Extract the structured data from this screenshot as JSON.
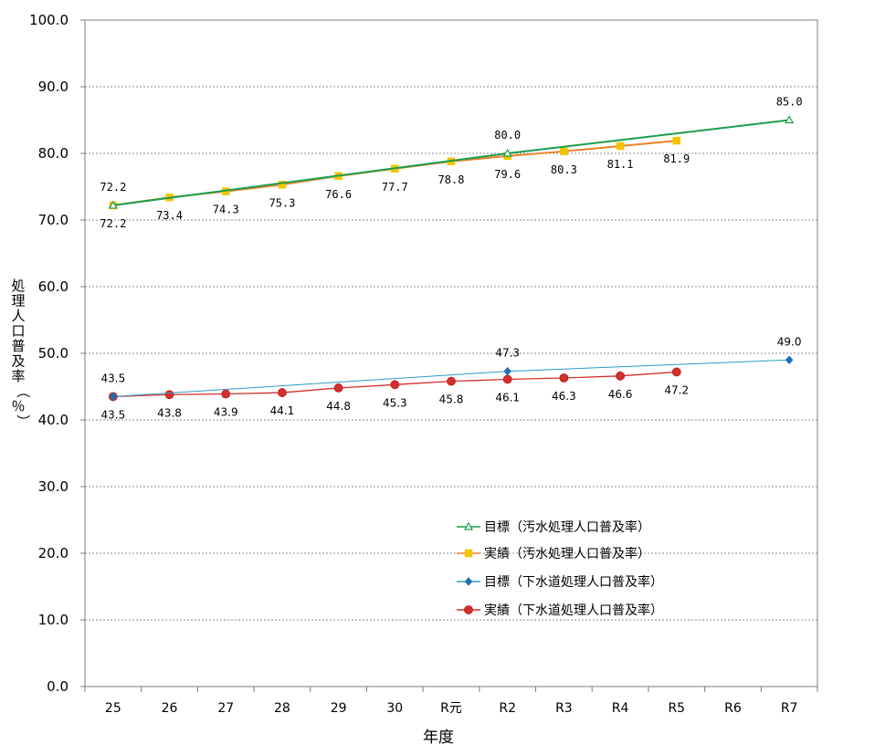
{
  "chart_data": {
    "type": "line",
    "title": "",
    "xlabel": "年度",
    "ylabel": "処理人口普及率（％）",
    "categories": [
      "25",
      "26",
      "27",
      "28",
      "29",
      "30",
      "R元",
      "R2",
      "R3",
      "R4",
      "R5",
      "R6",
      "R7"
    ],
    "ylim": [
      0,
      100
    ],
    "yticks": [
      "0.0",
      "10.0",
      "20.0",
      "30.0",
      "40.0",
      "50.0",
      "60.0",
      "70.0",
      "80.0",
      "90.0",
      "100.0"
    ],
    "grid": "horizontal dashed",
    "legend_position": "center-right inside plot",
    "series": [
      {
        "name": "目標（汚水処理人口普及率）",
        "color": "#1a9e4f",
        "marker": "triangle",
        "points": [
          {
            "x": "25",
            "y": 72.2,
            "label": "72.2"
          },
          {
            "x": "R2",
            "y": 80.0,
            "label": "80.0"
          },
          {
            "x": "R7",
            "y": 85.0,
            "label": "85.0"
          }
        ]
      },
      {
        "name": "実績（汚水処理人口普及率）",
        "color": "#e8832a",
        "marker_color": "#f5c400",
        "marker": "square",
        "points": [
          {
            "x": "25",
            "y": 72.2,
            "label": "72.2"
          },
          {
            "x": "26",
            "y": 73.4,
            "label": "73.4"
          },
          {
            "x": "27",
            "y": 74.3,
            "label": "74.3"
          },
          {
            "x": "28",
            "y": 75.3,
            "label": "75.3"
          },
          {
            "x": "29",
            "y": 76.6,
            "label": "76.6"
          },
          {
            "x": "30",
            "y": 77.7,
            "label": "77.7"
          },
          {
            "x": "R元",
            "y": 78.8,
            "label": "78.8"
          },
          {
            "x": "R2",
            "y": 79.6,
            "label": "79.6"
          },
          {
            "x": "R3",
            "y": 80.3,
            "label": "80.3"
          },
          {
            "x": "R4",
            "y": 81.1,
            "label": "81.1"
          },
          {
            "x": "R5",
            "y": 81.9,
            "label": "81.9"
          }
        ]
      },
      {
        "name": "目標（下水道処理人口普及率）",
        "color": "#2e9bc6",
        "marker_color": "#1f6fb3",
        "marker": "diamond",
        "points": [
          {
            "x": "25",
            "y": 43.5,
            "label": "43.5"
          },
          {
            "x": "R2",
            "y": 47.3,
            "label": "47.3"
          },
          {
            "x": "R7",
            "y": 49.0,
            "label": "49.0"
          }
        ]
      },
      {
        "name": "実績（下水道処理人口普及率）",
        "color": "#d32f2f",
        "marker": "circle",
        "points": [
          {
            "x": "25",
            "y": 43.5,
            "label": "43.5"
          },
          {
            "x": "26",
            "y": 43.8,
            "label": "43.8"
          },
          {
            "x": "27",
            "y": 43.9,
            "label": "43.9"
          },
          {
            "x": "28",
            "y": 44.1,
            "label": "44.1"
          },
          {
            "x": "29",
            "y": 44.8,
            "label": "44.8"
          },
          {
            "x": "30",
            "y": 45.3,
            "label": "45.3"
          },
          {
            "x": "R元",
            "y": 45.8,
            "label": "45.8"
          },
          {
            "x": "R2",
            "y": 46.1,
            "label": "46.1"
          },
          {
            "x": "R3",
            "y": 46.3,
            "label": "46.3"
          },
          {
            "x": "R4",
            "y": 46.6,
            "label": "46.6"
          },
          {
            "x": "R5",
            "y": 47.2,
            "label": "47.2"
          }
        ]
      }
    ]
  }
}
